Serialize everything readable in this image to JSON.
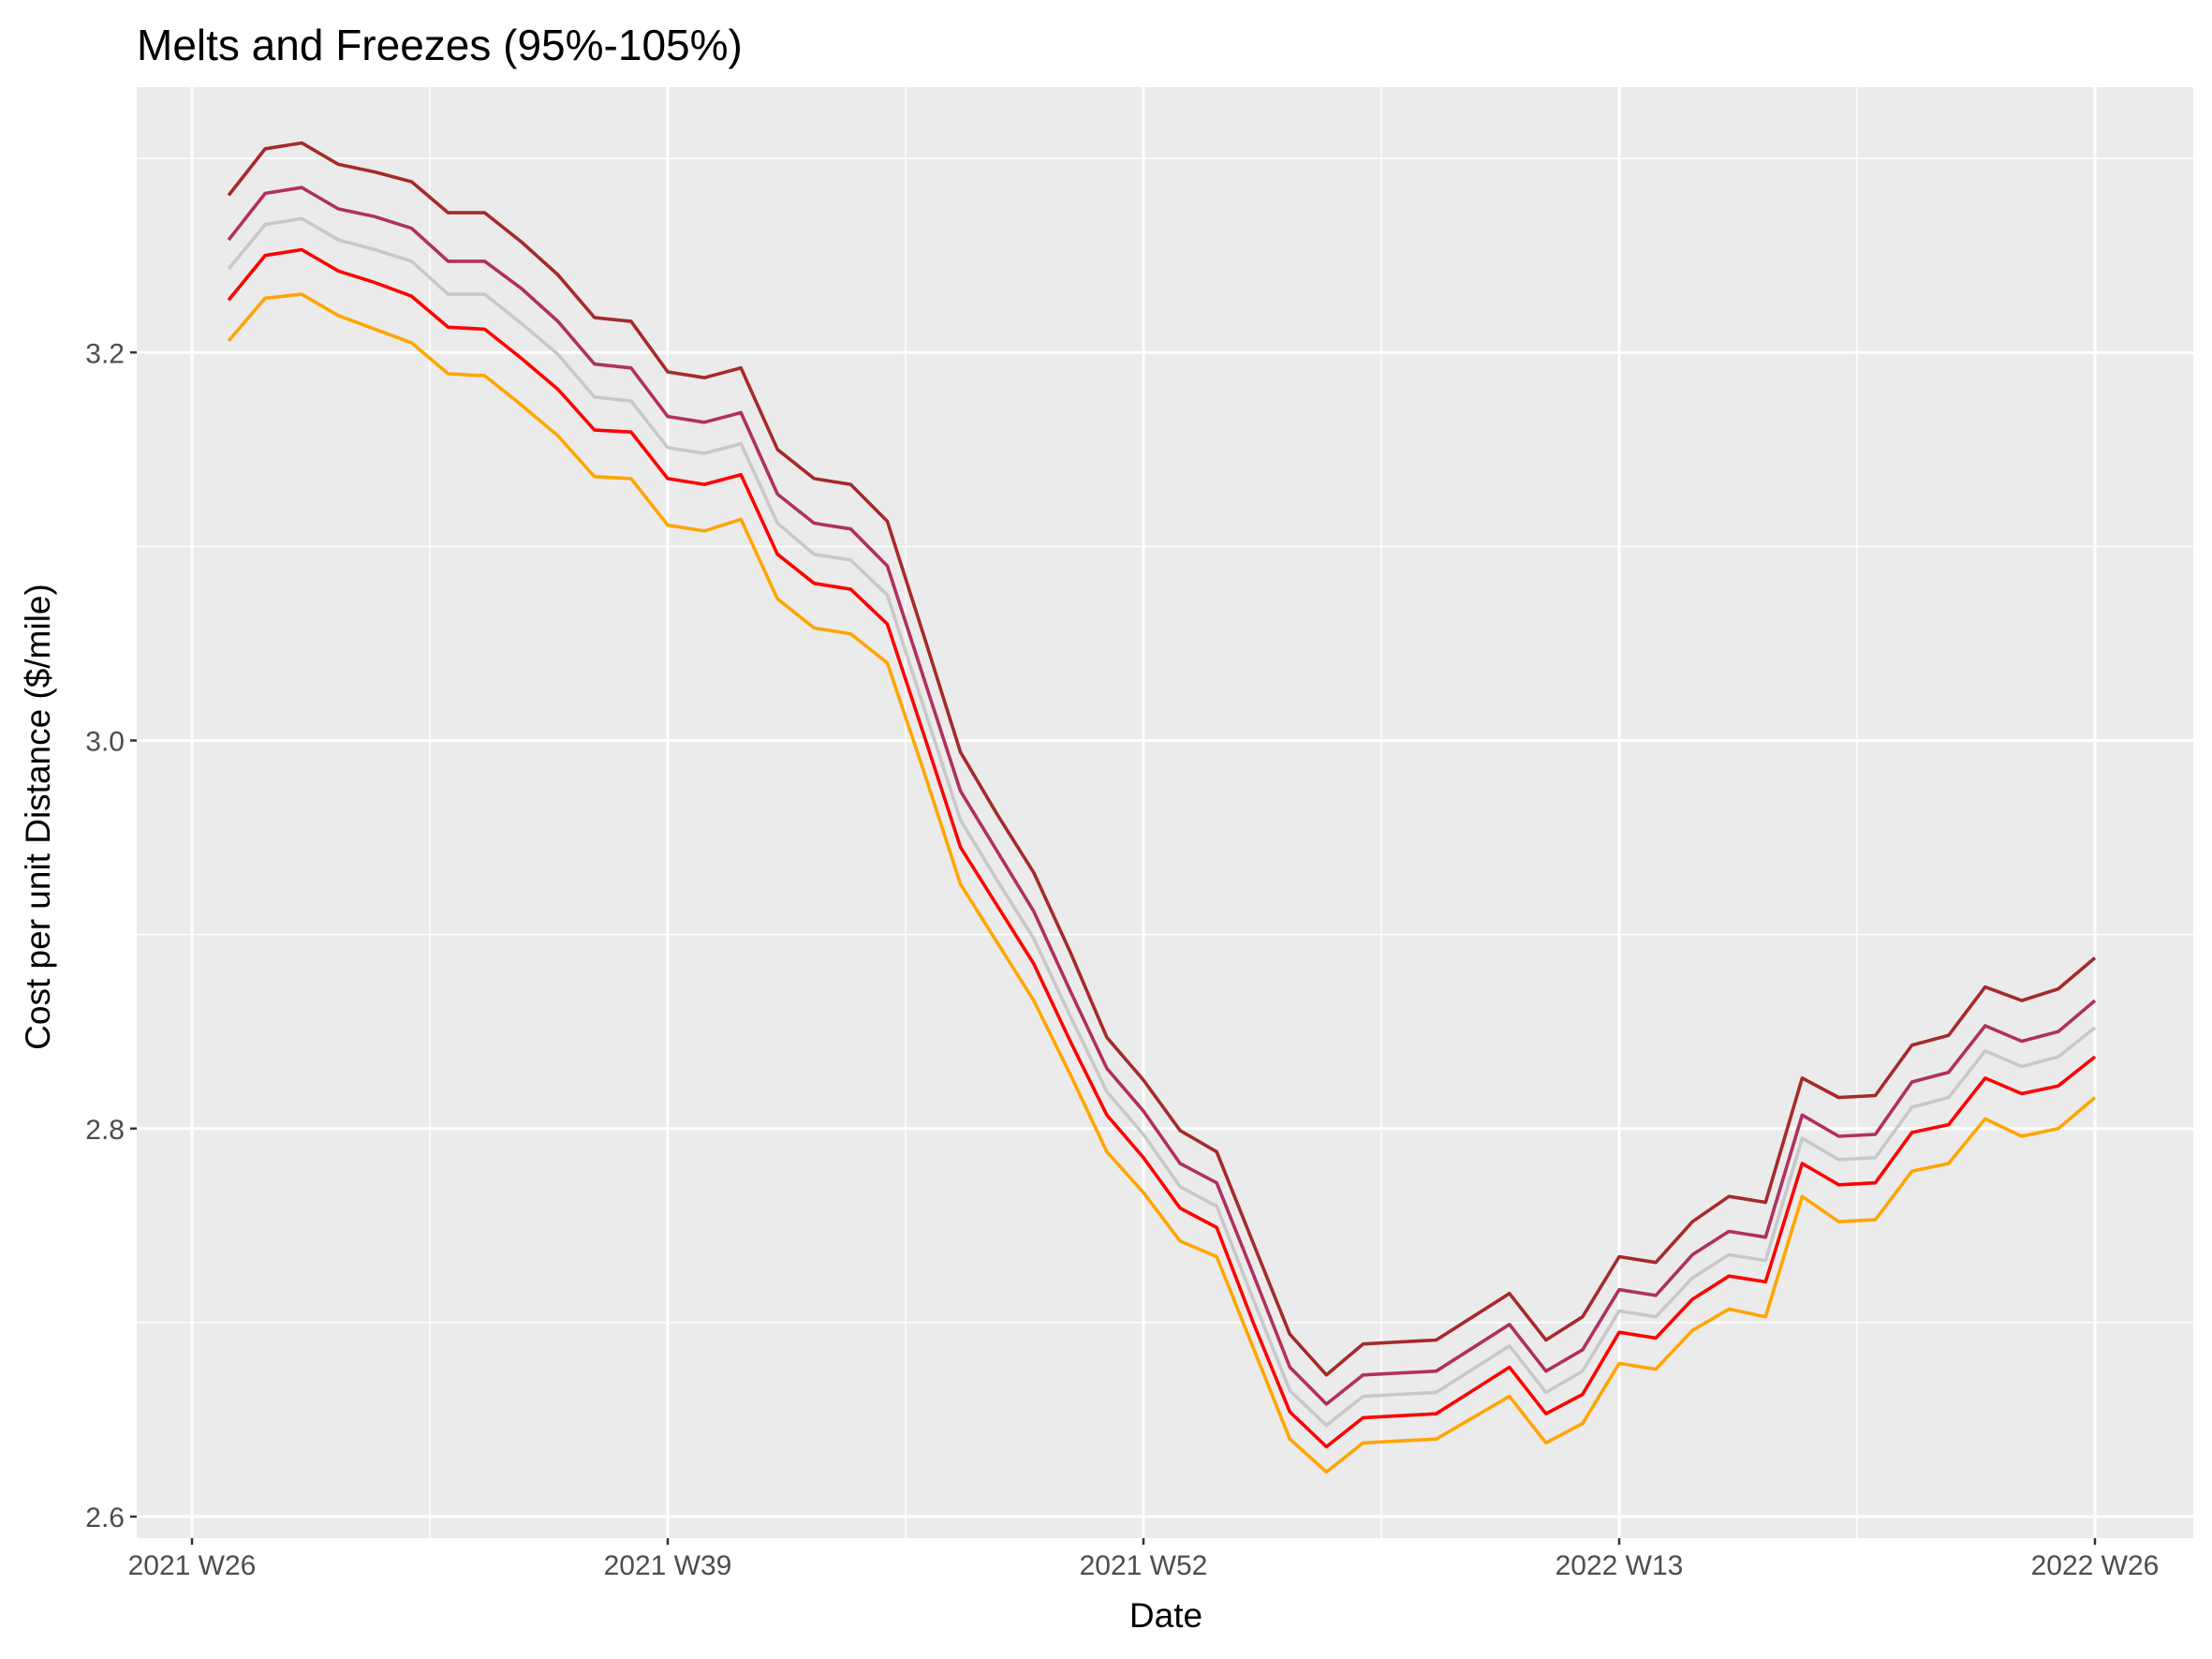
{
  "chart_data": {
    "type": "line",
    "title": "Melts and Freezes (95%-105%)",
    "xlabel": "Date",
    "ylabel": "Cost per unit Distance ($/mile)",
    "x_tick_labels": [
      "2021 W26",
      "2021 W39",
      "2021 W52",
      "2022 W13",
      "2022 W26"
    ],
    "y_ticks": [
      2.6,
      2.8,
      3.0,
      3.2
    ],
    "y_tick_labels": [
      "2.6",
      "2.8",
      "3.0",
      "3.2"
    ],
    "ylim": [
      2.6,
      3.33
    ],
    "grid": true,
    "legend": "none",
    "x": [
      "2021 W27",
      "2021 W28",
      "2021 W29",
      "2021 W30",
      "2021 W31",
      "2021 W32",
      "2021 W33",
      "2021 W34",
      "2021 W35",
      "2021 W36",
      "2021 W37",
      "2021 W38",
      "2021 W39",
      "2021 W40",
      "2021 W41",
      "2021 W42",
      "2021 W43",
      "2021 W44",
      "2021 W45",
      "2021 W46",
      "2021 W47",
      "2021 W48",
      "2021 W49",
      "2021 W50",
      "2021 W51",
      "2021 W52",
      "2022 W01",
      "2022 W02",
      "2022 W03",
      "2022 W04",
      "2022 W05",
      "2022 W06",
      "2022 W07",
      "2022 W08",
      "2022 W09",
      "2022 W10",
      "2022 W11",
      "2022 W12",
      "2022 W13",
      "2022 W14",
      "2022 W15",
      "2022 W16",
      "2022 W17",
      "2022 W18",
      "2022 W19",
      "2022 W20",
      "2022 W21",
      "2022 W22",
      "2022 W23",
      "2022 W24",
      "2022 W25",
      "2022 W26"
    ],
    "series": [
      {
        "color": "#a52a2a",
        "values": [
          3.281,
          3.305,
          3.308,
          3.297,
          3.293,
          3.288,
          3.272,
          3.272,
          3.257,
          3.24,
          3.218,
          3.216,
          3.19,
          3.187,
          3.192,
          3.15,
          3.135,
          3.132,
          3.113,
          3.054,
          2.994,
          2.962,
          2.932,
          2.891,
          2.847,
          2.825,
          2.799,
          2.788,
          2.741,
          2.694,
          2.673,
          2.689,
          2.69,
          2.691,
          2.703,
          2.715,
          2.691,
          2.703,
          2.734,
          2.731,
          2.752,
          2.765,
          2.762,
          2.826,
          2.816,
          2.817,
          2.843,
          2.848,
          2.873,
          2.866,
          2.872,
          2.888
        ]
      },
      {
        "color": "#b03060",
        "values": [
          3.258,
          3.282,
          3.285,
          3.274,
          3.27,
          3.264,
          3.247,
          3.247,
          3.233,
          3.216,
          3.194,
          3.192,
          3.167,
          3.164,
          3.169,
          3.127,
          3.112,
          3.109,
          3.09,
          3.032,
          2.974,
          2.943,
          2.912,
          2.871,
          2.831,
          2.809,
          2.782,
          2.772,
          2.725,
          2.677,
          2.658,
          2.673,
          2.674,
          2.675,
          2.687,
          2.699,
          2.675,
          2.686,
          2.717,
          2.714,
          2.735,
          2.747,
          2.744,
          2.807,
          2.796,
          2.797,
          2.824,
          2.829,
          2.853,
          2.845,
          2.85,
          2.866
        ]
      },
      {
        "color": "#c8c8c8",
        "values": [
          3.243,
          3.266,
          3.269,
          3.258,
          3.253,
          3.247,
          3.23,
          3.23,
          3.215,
          3.199,
          3.177,
          3.175,
          3.151,
          3.148,
          3.153,
          3.112,
          3.096,
          3.093,
          3.075,
          3.017,
          2.959,
          2.928,
          2.898,
          2.858,
          2.819,
          2.797,
          2.77,
          2.76,
          2.712,
          2.665,
          2.647,
          2.662,
          2.663,
          2.664,
          2.676,
          2.688,
          2.664,
          2.675,
          2.706,
          2.703,
          2.723,
          2.735,
          2.732,
          2.795,
          2.784,
          2.785,
          2.811,
          2.816,
          2.84,
          2.832,
          2.837,
          2.852
        ]
      },
      {
        "color": "#ff0000",
        "values": [
          3.227,
          3.25,
          3.253,
          3.242,
          3.236,
          3.229,
          3.213,
          3.212,
          3.197,
          3.181,
          3.16,
          3.159,
          3.135,
          3.132,
          3.137,
          3.096,
          3.081,
          3.078,
          3.06,
          3.003,
          2.945,
          2.915,
          2.885,
          2.845,
          2.807,
          2.785,
          2.759,
          2.749,
          2.7,
          2.654,
          2.636,
          2.651,
          2.652,
          2.653,
          2.665,
          2.677,
          2.653,
          2.663,
          2.695,
          2.692,
          2.712,
          2.724,
          2.721,
          2.782,
          2.771,
          2.772,
          2.798,
          2.802,
          2.826,
          2.818,
          2.822,
          2.837
        ]
      },
      {
        "color": "#ffa500",
        "values": [
          3.206,
          3.228,
          3.23,
          3.219,
          3.212,
          3.205,
          3.189,
          3.188,
          3.173,
          3.157,
          3.136,
          3.135,
          3.111,
          3.108,
          3.114,
          3.073,
          3.058,
          3.055,
          3.04,
          2.984,
          2.926,
          2.896,
          2.866,
          2.828,
          2.788,
          2.767,
          2.742,
          2.734,
          2.687,
          2.64,
          2.623,
          2.638,
          2.639,
          2.64,
          2.651,
          2.662,
          2.638,
          2.648,
          2.679,
          2.676,
          2.696,
          2.707,
          2.703,
          2.765,
          2.752,
          2.753,
          2.778,
          2.782,
          2.805,
          2.796,
          2.8,
          2.816
        ]
      }
    ]
  }
}
